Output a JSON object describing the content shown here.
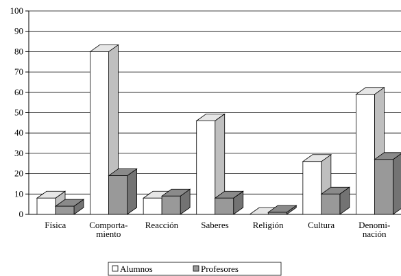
{
  "chart_data": {
    "type": "bar3d",
    "categories": [
      "Física",
      "Comporta-\nmiento",
      "Reacción",
      "Saberes",
      "Religión",
      "Cultura",
      "Denomi-\nnación"
    ],
    "series": [
      {
        "name": "Alumnos",
        "color": "#ffffff",
        "values": [
          8,
          80,
          8,
          46,
          0,
          26,
          59
        ]
      },
      {
        "name": "Profesores",
        "color": "#999999",
        "values": [
          4,
          19,
          9,
          8,
          1,
          10,
          27
        ]
      }
    ],
    "ylim": [
      0,
      100
    ],
    "yticks": [
      0,
      10,
      20,
      30,
      40,
      50,
      60,
      70,
      80,
      90,
      100
    ],
    "grid": true,
    "legend": "bottom"
  }
}
